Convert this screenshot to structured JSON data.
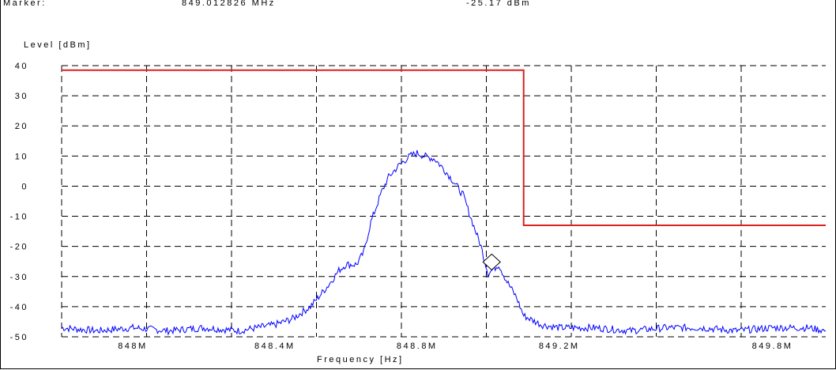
{
  "header": {
    "marker_label": "Marker:",
    "marker_freq": "849.012826 MHz",
    "marker_level": "-25.17 dBm"
  },
  "chart_data": {
    "type": "line",
    "xlabel": "Frequency [Hz]",
    "ylabel": "Level [dBm]",
    "xlim": [
      847.8,
      849.95
    ],
    "ylim": [
      -50,
      40
    ],
    "y_ticks": [
      40,
      30,
      20,
      10,
      0,
      -10,
      -20,
      -30,
      -40,
      -50
    ],
    "y_tick_labels": [
      "40",
      "30",
      "20",
      "10",
      "0",
      "-10",
      "-20",
      "-30",
      "-40",
      "-50"
    ],
    "x_tick_labels": [
      {
        "value": 848.0,
        "label": "848M"
      },
      {
        "value": 848.4,
        "label": "848.4M"
      },
      {
        "value": 848.8,
        "label": "848.8M"
      },
      {
        "value": 849.2,
        "label": "849.2M"
      },
      {
        "value": 849.8,
        "label": "849.8M"
      }
    ],
    "grid": true,
    "series": [
      {
        "color": "#0000ff",
        "x": [
          847.8,
          847.9,
          848.0,
          848.1,
          848.2,
          848.3,
          848.35,
          848.4,
          848.45,
          848.5,
          848.55,
          848.58,
          848.6,
          848.63,
          848.65,
          848.67,
          848.7,
          848.72,
          848.75,
          848.78,
          848.8,
          848.82,
          848.85,
          848.88,
          848.9,
          848.93,
          848.95,
          848.98,
          849.0,
          849.03,
          849.05,
          849.08,
          849.1,
          849.15,
          849.2,
          849.3,
          849.4,
          849.5,
          849.6,
          849.7,
          849.8,
          849.9,
          849.95
        ],
        "y": [
          -47,
          -48,
          -47,
          -48,
          -47,
          -48,
          -47,
          -46,
          -44,
          -40,
          -33,
          -28,
          -26,
          -26,
          -22,
          -12,
          -2,
          3,
          7,
          10,
          11,
          10,
          9,
          5,
          2,
          -3,
          -10,
          -20,
          -29,
          -26,
          -31,
          -37,
          -43,
          -46,
          -47,
          -47,
          -48,
          -47,
          -47,
          -48,
          -47,
          -47,
          -48
        ]
      },
      {
        "name": "",
        "color": "#dc2020",
        "x": [
          847.8,
          849.1,
          849.1,
          849.95
        ],
        "y": [
          38.5,
          38.5,
          -13,
          -13
        ]
      }
    ],
    "marker": {
      "x": 849.01,
      "y": -25.17
    }
  }
}
